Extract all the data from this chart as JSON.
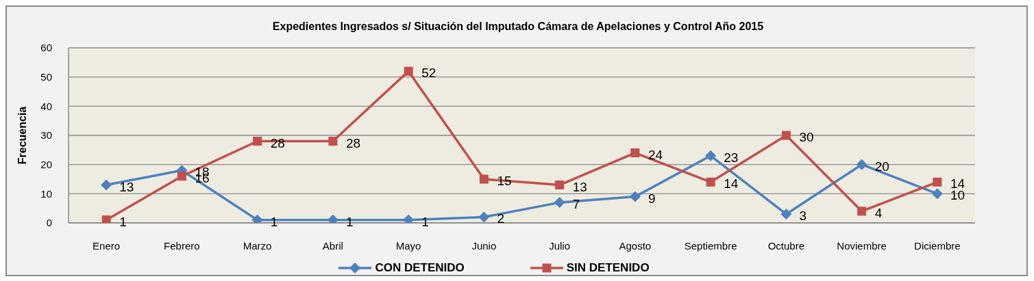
{
  "chart_data": {
    "type": "line",
    "title": "Expedientes Ingresados s/ Situación del Imputado Cámara de Apelaciones y Control Año 2015",
    "ylabel": "Frecuencia",
    "categories": [
      "Enero",
      "Febrero",
      "Marzo",
      "Abril",
      "Mayo",
      "Junio",
      "Julio",
      "Agosto",
      "Septiembre",
      "Octubre",
      "Noviembre",
      "Diciembre"
    ],
    "series": [
      {
        "name": "CON DETENIDO",
        "color": "#4f81bd",
        "marker": "diamond",
        "values": [
          13,
          18,
          1,
          1,
          1,
          2,
          7,
          9,
          23,
          3,
          20,
          10
        ]
      },
      {
        "name": "SIN DETENIDO",
        "color": "#c0504d",
        "marker": "square",
        "values": [
          1,
          16,
          28,
          28,
          52,
          15,
          13,
          24,
          14,
          30,
          4,
          14
        ]
      }
    ],
    "ylim": [
      0,
      60
    ],
    "yticks": [
      0,
      10,
      20,
      30,
      40,
      50,
      60
    ],
    "grid": "y",
    "legend": "bottom",
    "data_labels": true
  }
}
